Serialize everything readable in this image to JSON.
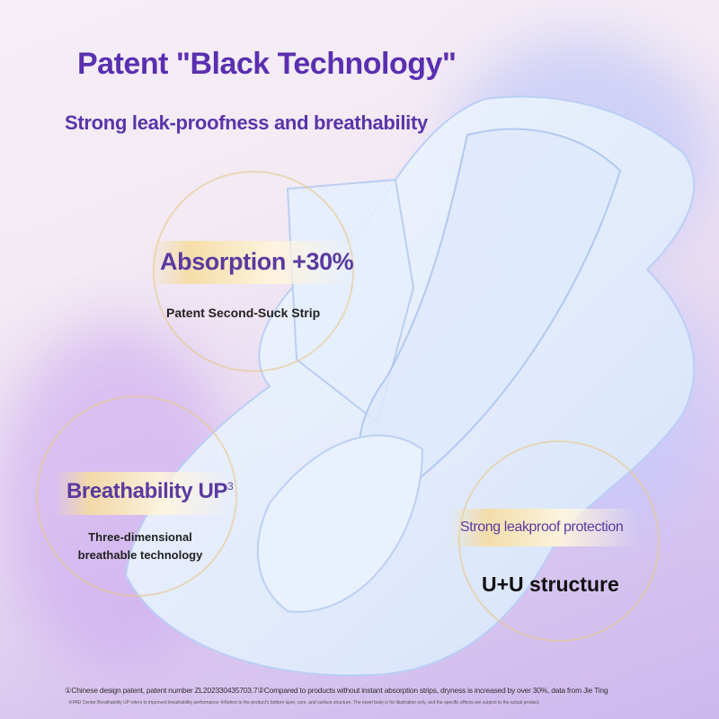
{
  "header": {
    "title": "Patent \"Black Technology\"",
    "subtitle": "Strong leak-proofness and breathability"
  },
  "features": [
    {
      "label": "Absorption +30%",
      "sup": "",
      "desc": "Patent Second-Suck Strip"
    },
    {
      "label": "Breathability UP",
      "sup": "3",
      "desc": "Three-dimensional breathable technology"
    },
    {
      "label": "Strong leakproof protection",
      "sup": "",
      "desc": "U+U structure"
    }
  ],
  "footnotes": {
    "line1": "①Chinese design patent, patent number ZL202330435703.7②Compared to products without instant absorption strips, dryness is increased by over 30%, data from Jie Ting",
    "line2": "③PAD Center Breathability UP refers to improved breathability performance ④Refers to the product's bottom layer, core, and surface structure. The towel body is for illustration only, and the specific effects are subject to the actual product."
  },
  "colors": {
    "accent": "#5a2fb0",
    "band": "#f5dca0"
  }
}
